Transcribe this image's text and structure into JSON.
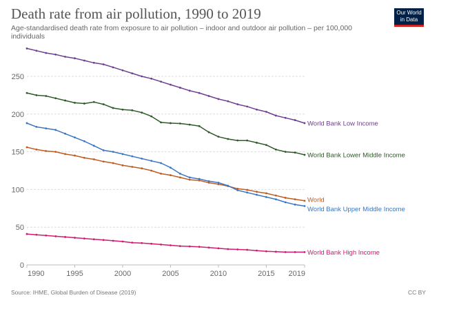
{
  "header": {
    "title": "Death rate from air pollution, 1990 to 2019",
    "subtitle": "Age-standardised death rate from exposure to air pollution – indoor and outdoor air pollution – per 100,000 individuals",
    "logo_line1": "Our World",
    "logo_line2": "in Data"
  },
  "footer": {
    "source": "Source: IHME, Global Burden of Disease (2019)",
    "license": "CC BY"
  },
  "colors": {
    "logo_bg": "#002147",
    "logo_stripe": "#ce261e"
  },
  "chart_data": {
    "type": "line",
    "title": "Death rate from air pollution, 1990 to 2019",
    "subtitle": "Age-standardised death rate from exposure to air pollution – indoor and outdoor air pollution – per 100,000 individuals",
    "xlabel": "",
    "ylabel": "",
    "xlim": [
      1990,
      2019
    ],
    "ylim": [
      0,
      290
    ],
    "x_ticks": [
      1990,
      1995,
      2000,
      2005,
      2010,
      2015,
      2019
    ],
    "y_ticks": [
      0,
      50,
      100,
      150,
      200,
      250
    ],
    "grid": "horizontal-dashed",
    "legend": "right-inline-labels",
    "x": [
      1990,
      1991,
      1992,
      1993,
      1994,
      1995,
      1996,
      1997,
      1998,
      1999,
      2000,
      2001,
      2002,
      2003,
      2004,
      2005,
      2006,
      2007,
      2008,
      2009,
      2010,
      2011,
      2012,
      2013,
      2014,
      2015,
      2016,
      2017,
      2018,
      2019
    ],
    "series": [
      {
        "name": "World Bank Low Income",
        "color": "#6d3e91",
        "values": [
          287,
          284,
          281,
          279,
          276,
          274,
          271,
          268,
          266,
          262,
          258,
          254,
          250,
          247,
          243,
          239,
          235,
          231,
          228,
          224,
          220,
          217,
          213,
          210,
          206,
          203,
          198,
          195,
          192,
          188
        ]
      },
      {
        "name": "World Bank Lower Middle Income",
        "color": "#2d5a27",
        "values": [
          228,
          225,
          224,
          221,
          218,
          215,
          214,
          216,
          213,
          208,
          206,
          205,
          202,
          197,
          189,
          188,
          187.5,
          186,
          184,
          176,
          170,
          167,
          165,
          165,
          162,
          159,
          153,
          150,
          149,
          146
        ]
      },
      {
        "name": "World",
        "color": "#c15a1f",
        "values": [
          156,
          153,
          151,
          150,
          147,
          145,
          142,
          140,
          137,
          135,
          132,
          130,
          128,
          125,
          121,
          119,
          116,
          113,
          112,
          109,
          107,
          104.5,
          101,
          99.5,
          97,
          95,
          92,
          89,
          87,
          85
        ]
      },
      {
        "name": "World Bank Upper Middle Income",
        "color": "#3a75c4",
        "values": [
          188,
          183,
          181,
          179,
          174,
          169,
          164,
          158,
          152,
          150,
          147,
          144,
          141,
          138,
          135,
          129,
          121,
          116,
          114,
          111,
          109,
          105,
          99,
          96,
          93,
          90,
          87,
          83,
          80,
          78
        ]
      },
      {
        "name": "World Bank High Income",
        "color": "#d2186f",
        "values": [
          41,
          40,
          39,
          38,
          37,
          36,
          35,
          34,
          33,
          32,
          31,
          29.5,
          29,
          28,
          27,
          26,
          25,
          24.5,
          24,
          23,
          22,
          21,
          20.5,
          20,
          19,
          18,
          17.5,
          17,
          17,
          17
        ]
      }
    ]
  }
}
